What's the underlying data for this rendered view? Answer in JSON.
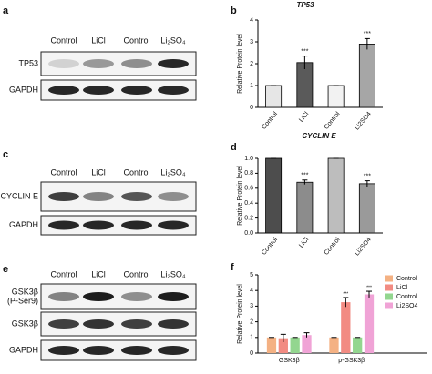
{
  "panel_labels": [
    "a",
    "b",
    "c",
    "d",
    "e",
    "f"
  ],
  "blots": [
    {
      "lanes": [
        "Control",
        "LiCl",
        "Control",
        "Li₂SO₄"
      ],
      "rows": [
        [
          "TP53"
        ],
        [
          "GAPDH"
        ]
      ]
    },
    {
      "lanes": [
        "Control",
        "LiCl",
        "Control",
        "Li₂SO₄"
      ],
      "rows": [
        [
          "CYCLIN E"
        ],
        [
          "GAPDH"
        ]
      ]
    },
    {
      "lanes": [
        "Control",
        "LiCl",
        "Control",
        "Li₂SO₄"
      ],
      "rows": [
        [
          "GSK3β",
          "(P-Ser9)"
        ],
        [
          "GSK3β"
        ],
        [
          "GAPDH"
        ]
      ]
    }
  ],
  "chart_data": [
    {
      "type": "bar",
      "title": "TP53",
      "ylabel": "Relative Protein level",
      "categories": [
        "Control",
        "LiCl",
        "Control",
        "Li2SO4"
      ],
      "values": [
        1,
        2.05,
        1,
        2.9
      ],
      "errors": [
        0,
        0.3,
        0,
        0.25
      ],
      "significance": [
        null,
        "***",
        null,
        "***"
      ],
      "colors": [
        "#e6e6e6",
        "#5a5a5a",
        "#f2f2f2",
        "#a6a6a6"
      ],
      "ylim": [
        0,
        4
      ],
      "yticks": [
        0,
        1,
        2,
        3,
        4
      ]
    },
    {
      "type": "bar",
      "title": "CYCLIN E",
      "ylabel": "Relative Protein level",
      "categories": [
        "Control",
        "LiCl",
        "Control",
        "Li2SO4"
      ],
      "values": [
        1,
        0.68,
        1,
        0.66
      ],
      "errors": [
        0,
        0.03,
        0,
        0.04
      ],
      "significance": [
        null,
        "***",
        null,
        "***"
      ],
      "colors": [
        "#4d4d4d",
        "#8c8c8c",
        "#bdbdbd",
        "#9a9a9a"
      ],
      "ylim": [
        0,
        1
      ],
      "yticks": [
        {
          "value": 0,
          "label": "0.0"
        },
        0.2,
        0.4,
        0.6,
        0.8,
        {
          "value": 1,
          "label": "1.0"
        }
      ]
    },
    {
      "type": "grouped_bar",
      "ylabel": "Relative Protein level",
      "categories": [
        "GSK3β",
        "p-GSK3β"
      ],
      "series": [
        {
          "name": "Control",
          "color": "#f4b183",
          "values": [
            1,
            1
          ],
          "errors": [
            0,
            0
          ],
          "significance": [
            null,
            null
          ]
        },
        {
          "name": "LiCl",
          "color": "#f28b82",
          "values": [
            0.95,
            3.25
          ],
          "errors": [
            0.25,
            0.3
          ],
          "significance": [
            null,
            "***"
          ]
        },
        {
          "name": "Control",
          "color": "#93d68f",
          "values": [
            1,
            1
          ],
          "errors": [
            0,
            0
          ],
          "significance": [
            null,
            null
          ]
        },
        {
          "name": "Li2SO4",
          "color": "#f0a3d6",
          "values": [
            1.15,
            3.75
          ],
          "errors": [
            0.15,
            0.2
          ],
          "significance": [
            null,
            "***"
          ]
        }
      ],
      "ylim": [
        0,
        5
      ],
      "yticks": [
        0,
        1,
        2,
        3,
        4,
        5
      ],
      "legend": "upper right"
    }
  ]
}
